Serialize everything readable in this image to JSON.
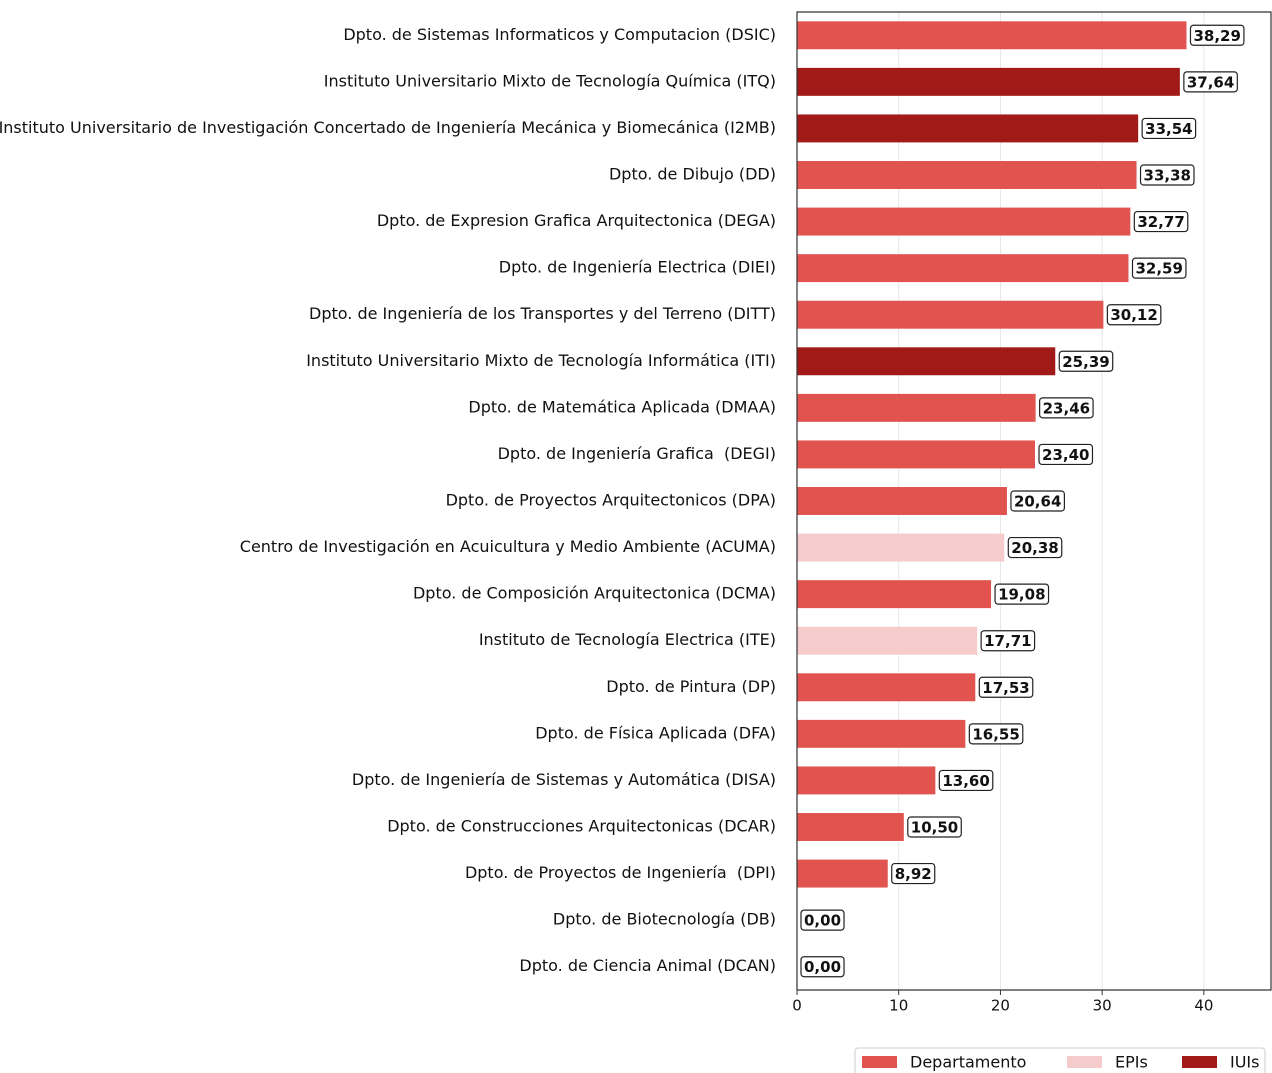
{
  "chart_data": {
    "type": "barh",
    "categories": [
      "Dpto. de Sistemas Informaticos y Computacion (DSIC)",
      "Instituto Universitario Mixto de Tecnología Química (ITQ)",
      "Instituto Universitario de Investigación Concertado de Ingeniería Mecánica y Biomecánica (I2MB)",
      "Dpto. de Dibujo (DD)",
      "Dpto. de Expresion Grafica Arquitectonica (DEGA)",
      "Dpto. de Ingeniería Electrica (DIEI)",
      "Dpto. de Ingeniería de los Transportes y del Terreno (DITT)",
      "Instituto Universitario Mixto de Tecnología Informática (ITI)",
      "Dpto. de Matemática Aplicada (DMAA)",
      "Dpto. de Ingeniería Grafica  (DEGI)",
      "Dpto. de Proyectos Arquitectonicos (DPA)",
      "Centro de Investigación en Acuicultura y Medio Ambiente (ACUMA)",
      "Dpto. de Composición Arquitectonica (DCMA)",
      "Instituto de Tecnología Electrica (ITE)",
      "Dpto. de Pintura (DP)",
      "Dpto. de Física Aplicada (DFA)",
      "Dpto. de Ingeniería de Sistemas y Automática (DISA)",
      "Dpto. de Construcciones Arquitectonicas (DCAR)",
      "Dpto. de Proyectos de Ingeniería  (DPI)",
      "Dpto. de Biotecnología (DB)",
      "Dpto. de Ciencia Animal (DCAN)"
    ],
    "series": [
      {
        "name": "Departamento",
        "color": "#e0534f",
        "values": [
          38.29,
          null,
          null,
          33.38,
          32.77,
          32.59,
          30.12,
          null,
          23.46,
          23.4,
          20.64,
          null,
          19.08,
          null,
          17.53,
          16.55,
          13.6,
          10.5,
          8.92,
          0,
          0
        ],
        "value_labels": [
          "38,29",
          null,
          null,
          "33,38",
          "32,77",
          "32,59",
          "30,12",
          null,
          "23,46",
          "23,40",
          "20,64",
          null,
          "19,08",
          null,
          "17,53",
          "16,55",
          "13,60",
          "10,50",
          "8,92",
          "0,00",
          "0,00"
        ]
      },
      {
        "name": "EPIs",
        "color": "#f5cccb",
        "values": [
          null,
          null,
          null,
          null,
          null,
          null,
          null,
          null,
          null,
          null,
          null,
          20.38,
          null,
          17.71,
          null,
          null,
          null,
          null,
          null,
          null,
          null
        ],
        "value_labels": [
          null,
          null,
          null,
          null,
          null,
          null,
          null,
          null,
          null,
          null,
          null,
          "20,38",
          null,
          "17,71",
          null,
          null,
          null,
          null,
          null,
          null,
          null
        ]
      },
      {
        "name": "IUIs",
        "color": "#a11a17",
        "values": [
          null,
          37.64,
          33.54,
          null,
          null,
          null,
          null,
          25.39,
          null,
          null,
          null,
          null,
          null,
          null,
          null,
          null,
          null,
          null,
          null,
          null,
          null
        ],
        "value_labels": [
          null,
          "37,64",
          "33,54",
          null,
          null,
          null,
          null,
          "25,39",
          null,
          null,
          null,
          null,
          null,
          null,
          null,
          null,
          null,
          null,
          null,
          null,
          null
        ]
      }
    ],
    "xlim": [
      0,
      46.6
    ],
    "xticks": [
      0,
      10,
      20,
      30,
      40
    ],
    "grid": true,
    "legend": "lower right"
  }
}
